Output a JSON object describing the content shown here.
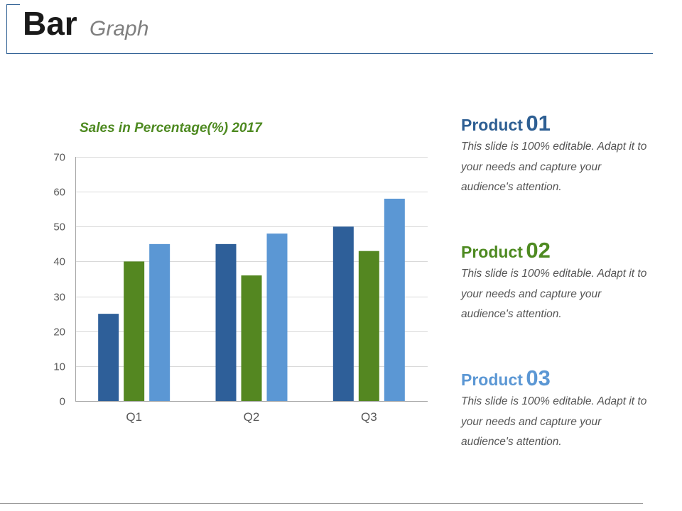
{
  "title": {
    "main": "Bar",
    "sub": "Graph"
  },
  "colors": {
    "frame": "#2e5f93",
    "series": [
      "#2e5f99",
      "#548721",
      "#5b97d4"
    ],
    "grid": "#d9d9d9",
    "axis": "#a6a6a6",
    "tick_text": "#595959"
  },
  "chart_data": {
    "type": "bar",
    "title": "Sales in Percentage(%) 2017",
    "categories": [
      "Q1",
      "Q2",
      "Q3"
    ],
    "series": [
      {
        "values": [
          25,
          45,
          50
        ]
      },
      {
        "values": [
          40,
          36,
          43
        ]
      },
      {
        "values": [
          45,
          48,
          58
        ]
      }
    ],
    "ylim": [
      0,
      70
    ],
    "yticks": [
      0,
      10,
      20,
      30,
      40,
      50,
      60,
      70
    ],
    "grid": true
  },
  "products": [
    {
      "name": "Product",
      "number": "01",
      "color": "#2e5f93",
      "text": "This slide is 100% editable. Adapt it to your needs and capture your audience's attention."
    },
    {
      "name": "Product",
      "number": "02",
      "color": "#4e8a21",
      "text": "This slide is 100% editable. Adapt it to your needs and capture your audience's attention."
    },
    {
      "name": "Product",
      "number": "03",
      "color": "#5b97d4",
      "text": "This slide is 100% editable. Adapt it to your needs and capture your audience's attention."
    }
  ]
}
